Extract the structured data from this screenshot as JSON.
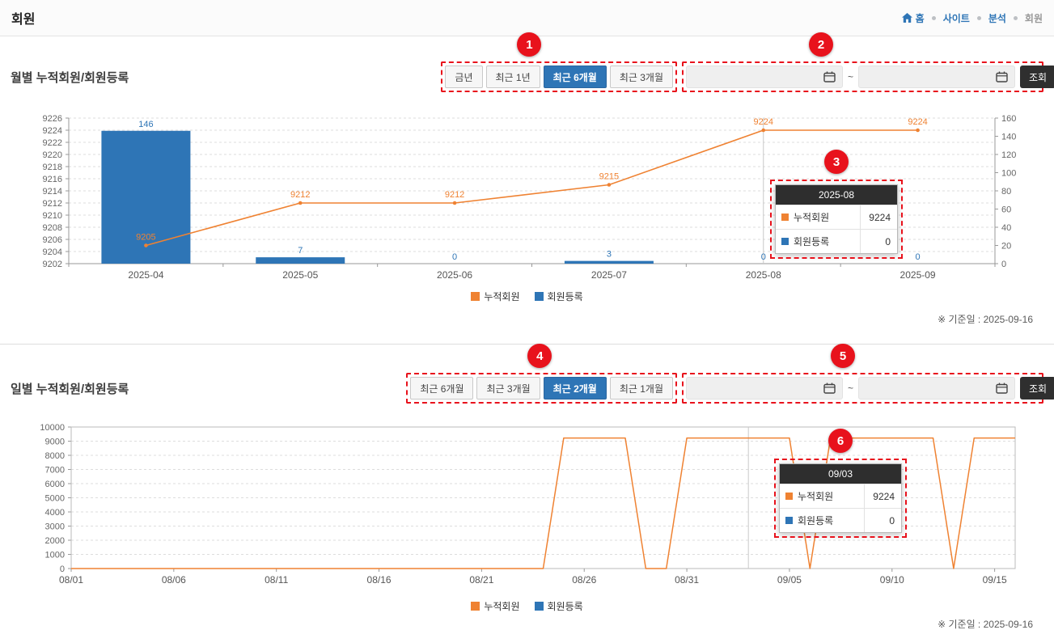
{
  "page": {
    "title": "회원",
    "nav": {
      "home": "홈",
      "site": "사이트",
      "analysis": "분석",
      "member": "회원"
    }
  },
  "colors": {
    "orange": "#ef8232",
    "blue": "#2e75b6",
    "annotation_red": "#e8121c",
    "dark_button": "#2f2f2f"
  },
  "monthly": {
    "title": "월별 누적회원/회원등록",
    "filters": [
      {
        "label": "금년",
        "selected": false
      },
      {
        "label": "최근 1년",
        "selected": false
      },
      {
        "label": "최근 6개월",
        "selected": true
      },
      {
        "label": "최근 3개월",
        "selected": false
      }
    ],
    "date_from": "",
    "date_to": "",
    "tilde": "~",
    "search": "조회",
    "tooltip": {
      "title": "2025-08",
      "rows": [
        {
          "label": "누적회원",
          "value": "9224"
        },
        {
          "label": "회원등록",
          "value": "0"
        }
      ]
    },
    "legend": [
      {
        "label": "누적회원"
      },
      {
        "label": "회원등록"
      }
    ],
    "footnote": "※ 기준일 : 2025-09-16",
    "annotations": {
      "filters": "1",
      "dates": "2",
      "tooltip": "3"
    }
  },
  "daily": {
    "title": "일별 누적회원/회원등록",
    "filters": [
      {
        "label": "최근 6개월",
        "selected": false
      },
      {
        "label": "최근 3개월",
        "selected": false
      },
      {
        "label": "최근 2개월",
        "selected": true
      },
      {
        "label": "최근 1개월",
        "selected": false
      }
    ],
    "date_from": "",
    "date_to": "",
    "tilde": "~",
    "search": "조회",
    "tooltip": {
      "title": "09/03",
      "rows": [
        {
          "label": "누적회원",
          "value": "9224"
        },
        {
          "label": "회원등록",
          "value": "0"
        }
      ]
    },
    "legend": [
      {
        "label": "누적회원"
      },
      {
        "label": "회원등록"
      }
    ],
    "footnote": "※ 기준일 : 2025-09-16",
    "annotations": {
      "filters": "4",
      "dates": "5",
      "tooltip": "6"
    }
  },
  "chart_data": [
    {
      "type": "combo-bar-line",
      "title": "월별 누적회원/회원등록",
      "categories": [
        "2025-04",
        "2025-05",
        "2025-06",
        "2025-07",
        "2025-08",
        "2025-09"
      ],
      "series": [
        {
          "name": "누적회원",
          "type": "line",
          "axis": "left",
          "color": "#ef8232",
          "values": [
            9205,
            9212,
            9212,
            9215,
            9224,
            9224
          ]
        },
        {
          "name": "회원등록",
          "type": "bar",
          "axis": "right",
          "color": "#2e75b6",
          "values": [
            146,
            7,
            0,
            3,
            0,
            0
          ]
        }
      ],
      "left_axis": {
        "min": 9202,
        "max": 9226,
        "step": 2
      },
      "right_axis": {
        "min": 0,
        "max": 160,
        "step": 20
      },
      "crosshair_category": "2025-08",
      "grid": "dashed-horizontal",
      "legend_position": "bottom"
    },
    {
      "type": "line",
      "title": "일별 누적회원/회원등록",
      "x": [
        "08/01",
        "08/02",
        "08/03",
        "08/04",
        "08/05",
        "08/06",
        "08/07",
        "08/08",
        "08/09",
        "08/10",
        "08/11",
        "08/12",
        "08/13",
        "08/14",
        "08/15",
        "08/16",
        "08/17",
        "08/18",
        "08/19",
        "08/20",
        "08/21",
        "08/22",
        "08/23",
        "08/24",
        "08/25",
        "08/26",
        "08/27",
        "08/28",
        "08/29",
        "08/30",
        "08/31",
        "09/01",
        "09/02",
        "09/03",
        "09/04",
        "09/05",
        "09/06",
        "09/07",
        "09/08",
        "09/09",
        "09/10",
        "09/11",
        "09/12",
        "09/13",
        "09/14",
        "09/15",
        "09/16"
      ],
      "tick_every": 5,
      "series": [
        {
          "name": "누적회원",
          "type": "line",
          "color": "#ef8232",
          "values": [
            0,
            0,
            0,
            0,
            0,
            0,
            0,
            0,
            0,
            0,
            0,
            0,
            0,
            0,
            0,
            0,
            0,
            0,
            0,
            0,
            0,
            0,
            0,
            0,
            9224,
            9224,
            9224,
            9224,
            0,
            0,
            9224,
            9224,
            9224,
            9224,
            9224,
            9224,
            0,
            9224,
            9224,
            9224,
            9224,
            9224,
            9224,
            0,
            9224,
            9224,
            9224
          ]
        },
        {
          "name": "회원등록",
          "type": "bar",
          "color": "#2e75b6",
          "values": [
            0,
            0,
            0,
            0,
            0,
            0,
            0,
            0,
            0,
            0,
            0,
            0,
            0,
            0,
            0,
            0,
            0,
            0,
            0,
            0,
            0,
            0,
            0,
            0,
            0,
            0,
            0,
            0,
            0,
            0,
            0,
            0,
            0,
            0,
            0,
            0,
            0,
            0,
            0,
            0,
            0,
            0,
            0,
            0,
            0,
            0,
            0
          ]
        }
      ],
      "y_axis": {
        "min": 0,
        "max": 10000,
        "step": 1000
      },
      "crosshair_x": "09/03",
      "grid": "dashed-horizontal",
      "legend_position": "bottom"
    }
  ]
}
